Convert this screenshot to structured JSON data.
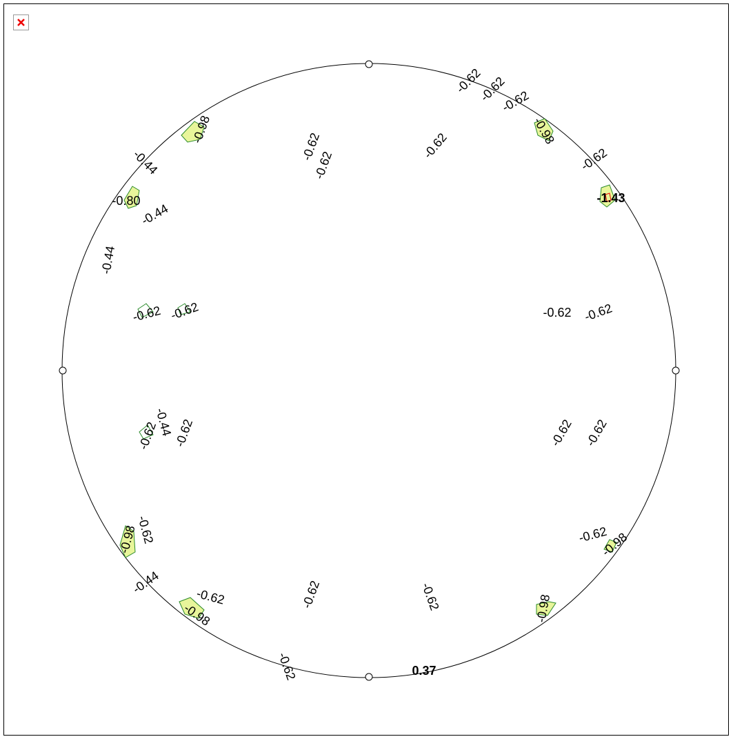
{
  "labels": [
    "-0.62",
    "-0.62",
    "-0.62",
    "-0.98",
    "-0.62",
    "-1.43",
    "-0.98",
    "-0.44",
    "-0.80",
    "-0.44",
    "-0.44",
    "-0.62",
    "-0.62",
    "-0.62",
    "-0.62",
    "-0.62",
    "-0.62",
    "-0.62",
    "-0.62",
    "-0.44",
    "-0.62",
    "-0.62",
    "-0.62",
    "-0.62",
    "-0.98",
    "-0.44",
    "-0.62",
    "-0.98",
    "-0.62",
    "-0.62",
    "-0.98",
    "-0.62",
    "-0.98",
    "-0.62",
    "0.37"
  ]
}
